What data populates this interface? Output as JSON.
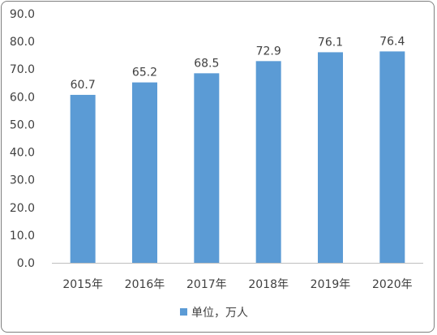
{
  "chart_data": {
    "type": "bar",
    "categories": [
      "2015年",
      "2016年",
      "2017年",
      "2018年",
      "2019年",
      "2020年"
    ],
    "series": [
      {
        "name": "单位，万人",
        "values": [
          60.7,
          65.2,
          68.5,
          72.9,
          76.1,
          76.4
        ],
        "color": "#5b9bd5"
      }
    ],
    "data_labels": [
      "60.7",
      "65.2",
      "68.5",
      "72.9",
      "76.1",
      "76.4"
    ],
    "y_ticks": [
      "0.0",
      "10.0",
      "20.0",
      "30.0",
      "40.0",
      "50.0",
      "60.0",
      "70.0",
      "80.0",
      "90.0"
    ],
    "ylim": [
      0,
      90
    ],
    "grid": false,
    "legend_position": "bottom",
    "title": "",
    "xlabel": "",
    "ylabel": ""
  }
}
